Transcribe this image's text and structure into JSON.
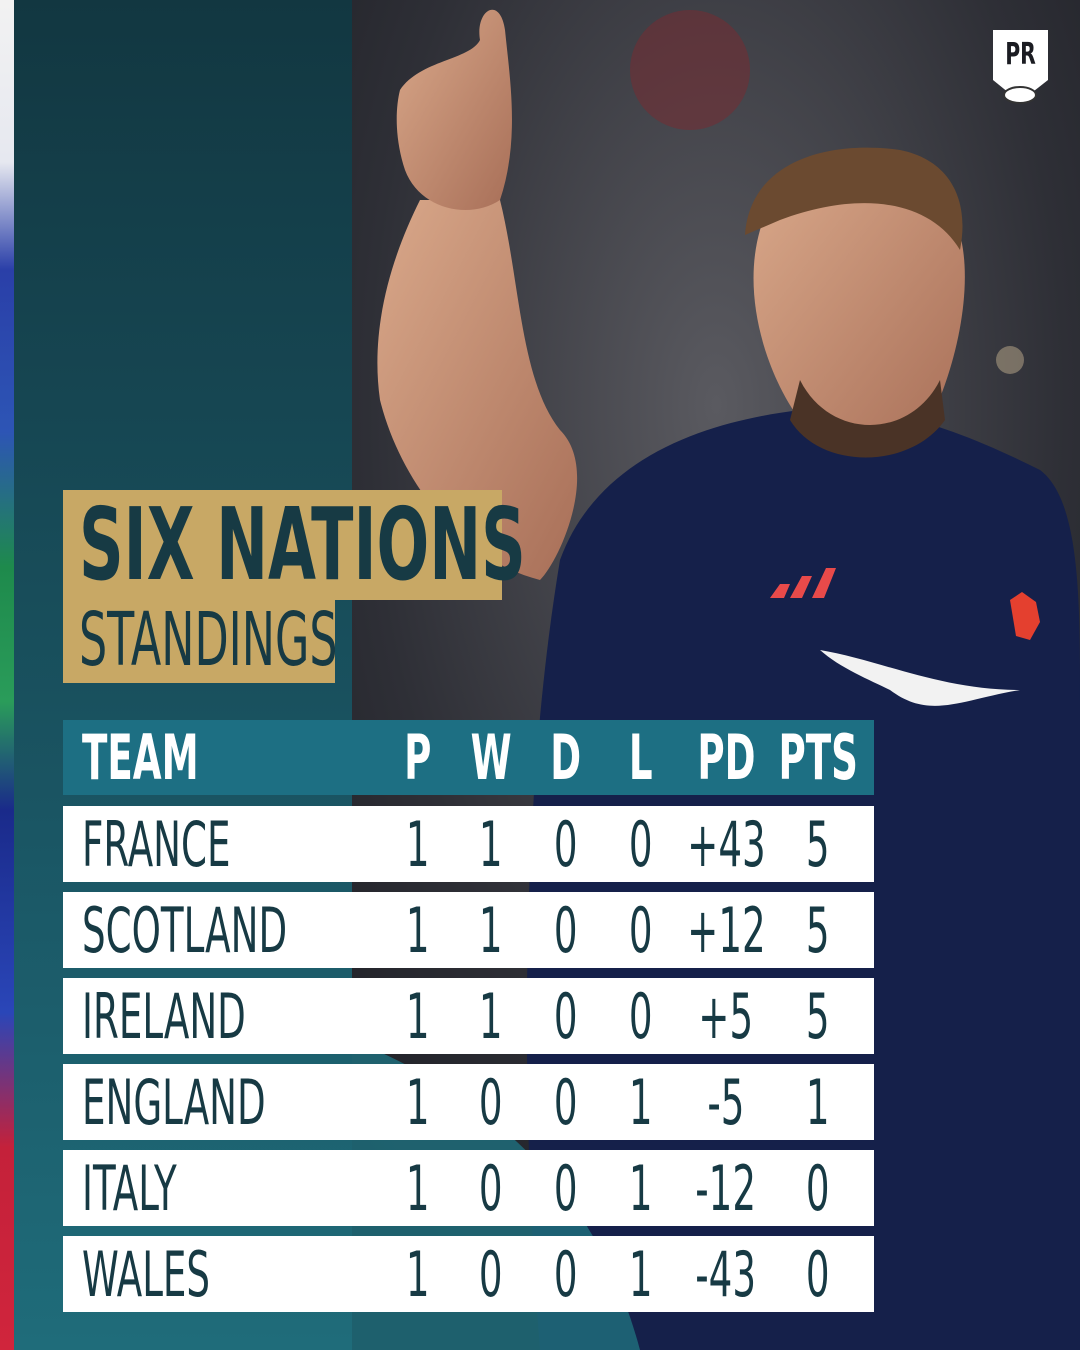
{
  "logo": "PR",
  "header": {
    "title": "SIX NATIONS",
    "subtitle": "STANDINGS"
  },
  "table": {
    "columns": [
      "TEAM",
      "P",
      "W",
      "D",
      "L",
      "PD",
      "PTS"
    ],
    "rows": [
      [
        "FRANCE",
        "1",
        "1",
        "0",
        "0",
        "+43",
        "5"
      ],
      [
        "SCOTLAND",
        "1",
        "1",
        "0",
        "0",
        "+12",
        "5"
      ],
      [
        "IRELAND",
        "1",
        "1",
        "0",
        "0",
        "+5",
        "5"
      ],
      [
        "ENGLAND",
        "1",
        "0",
        "0",
        "1",
        "-5",
        "1"
      ],
      [
        "ITALY",
        "1",
        "0",
        "0",
        "1",
        "-12",
        "0"
      ],
      [
        "WALES",
        "1",
        "0",
        "0",
        "1",
        "-43",
        "0"
      ]
    ]
  }
}
